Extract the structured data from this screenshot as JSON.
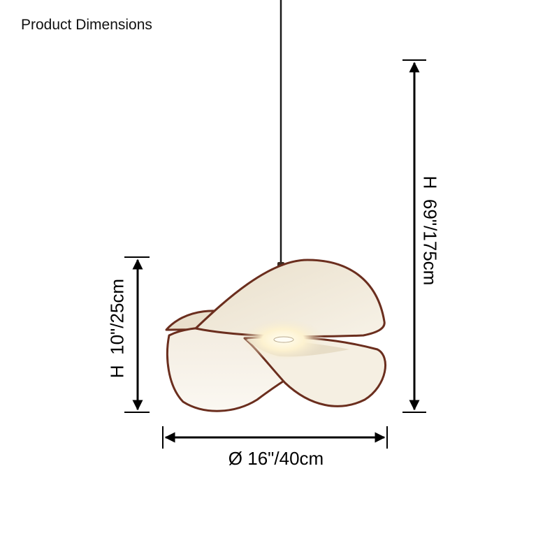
{
  "header": {
    "title": "Product Dimensions"
  },
  "dimensions": {
    "shade_height": "H  10\"/25cm",
    "overall_height": "H  69\"/175cm",
    "diameter": "Ø 16\"/40cm"
  },
  "colors": {
    "rim": "#5a2a1c",
    "shade_light": "#f6f1e6",
    "shade_shadow": "#e2d6bf",
    "bulb_glow": "#fff8dc",
    "cord": "#1a1a1a",
    "arrow": "#000000"
  }
}
